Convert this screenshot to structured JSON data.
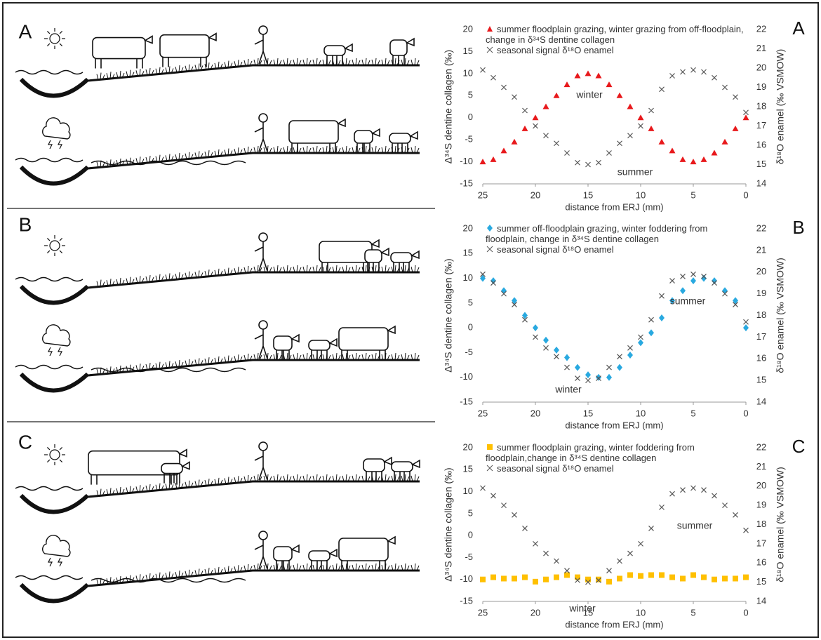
{
  "chart_data": [
    {
      "type": "scatter",
      "panel": "A",
      "xlabel": "distance from ERJ (mm)",
      "ylabel": "Δ³⁴S dentine collagen (‰)",
      "y2label": "δ¹⁸O enamel (‰ VSMOW)",
      "xlim": [
        25,
        0
      ],
      "xticks": [
        25,
        20,
        15,
        10,
        5,
        0
      ],
      "ylim": [
        -15,
        20
      ],
      "yticks": [
        -15,
        -10,
        -5,
        0,
        5,
        10,
        15,
        20
      ],
      "y2lim": [
        14,
        22
      ],
      "y2ticks": [
        14,
        15,
        16,
        17,
        18,
        19,
        20,
        21,
        22
      ],
      "annotations": [
        "winter",
        "summer"
      ],
      "x": [
        25,
        24,
        23,
        22,
        21,
        20,
        19,
        18,
        17,
        16,
        15,
        14,
        13,
        12,
        11,
        10,
        9,
        8,
        7,
        6,
        5,
        4,
        3,
        2,
        1,
        0
      ],
      "series": [
        {
          "name": "summer floodplain grazing, winter grazing from off-floodplain, change in δ³⁴S dentine collagen",
          "color": "#e8191c",
          "marker": "triangle",
          "values": [
            -10,
            -9.5,
            -7.5,
            -5.5,
            -2.5,
            0,
            2.5,
            5,
            7.5,
            9.5,
            10,
            9.5,
            7.5,
            5,
            2.5,
            0,
            -2.5,
            -5.5,
            -7.5,
            -9.5,
            -10,
            -9.5,
            -8,
            -5.5,
            -2.5,
            0
          ]
        },
        {
          "name": "seasonal signal δ¹⁸O enamel",
          "color": "#555555",
          "marker": "x",
          "axis": "y2",
          "values": [
            19.9,
            19.5,
            19.0,
            18.5,
            17.8,
            17.0,
            16.5,
            16.1,
            15.6,
            15.1,
            15.0,
            15.1,
            15.6,
            16.1,
            16.5,
            17.0,
            17.8,
            18.9,
            19.6,
            19.8,
            19.9,
            19.8,
            19.5,
            19.0,
            18.5,
            17.7
          ]
        }
      ]
    },
    {
      "type": "scatter",
      "panel": "B",
      "xlabel": "distance from ERJ (mm)",
      "ylabel": "Δ³⁴S dentine collagen (‰)",
      "y2label": "δ¹⁸O enamel (‰ VSMOW)",
      "xlim": [
        25,
        0
      ],
      "xticks": [
        25,
        20,
        15,
        10,
        5,
        0
      ],
      "ylim": [
        -15,
        20
      ],
      "yticks": [
        -15,
        -10,
        -5,
        0,
        5,
        10,
        15,
        20
      ],
      "y2lim": [
        14,
        22
      ],
      "y2ticks": [
        14,
        15,
        16,
        17,
        18,
        19,
        20,
        21,
        22
      ],
      "annotations": [
        "summer",
        "winter"
      ],
      "x": [
        25,
        24,
        23,
        22,
        21,
        20,
        19,
        18,
        17,
        16,
        15,
        14,
        13,
        12,
        11,
        10,
        9,
        8,
        7,
        6,
        5,
        4,
        3,
        2,
        1,
        0
      ],
      "series": [
        {
          "name": "summer off-floodplain grazing, winter foddering from floodplain, change in δ³⁴S dentine collagen",
          "color": "#29a9e0",
          "marker": "diamond",
          "values": [
            10,
            9.5,
            7.5,
            5.5,
            2.5,
            0,
            -2.5,
            -4.5,
            -6,
            -8,
            -9.5,
            -10,
            -10,
            -8,
            -5.5,
            -3,
            -1,
            2,
            5.5,
            7.5,
            9.5,
            10,
            9.5,
            7.5,
            5.5,
            0
          ]
        },
        {
          "name": "seasonal signal δ¹⁸O enamel",
          "color": "#555555",
          "marker": "x",
          "axis": "y2",
          "values": [
            19.9,
            19.5,
            19.0,
            18.5,
            17.8,
            17.0,
            16.5,
            16.1,
            15.6,
            15.1,
            15.0,
            15.1,
            15.6,
            16.1,
            16.5,
            17.0,
            17.8,
            18.9,
            19.6,
            19.8,
            19.9,
            19.8,
            19.5,
            19.0,
            18.5,
            17.7
          ]
        }
      ]
    },
    {
      "type": "scatter",
      "panel": "C",
      "xlabel": "distance from ERJ (mm)",
      "ylabel": "Δ³⁴S dentine collagen (‰)",
      "y2label": "δ¹⁸O enamel (‰ VSMOW)",
      "xlim": [
        25,
        0
      ],
      "xticks": [
        25,
        20,
        15,
        10,
        5,
        0
      ],
      "ylim": [
        -15,
        20
      ],
      "yticks": [
        -15,
        -10,
        -5,
        0,
        5,
        10,
        15,
        20
      ],
      "y2lim": [
        14,
        22
      ],
      "y2ticks": [
        14,
        15,
        16,
        17,
        18,
        19,
        20,
        21,
        22
      ],
      "annotations": [
        "summer",
        "winter"
      ],
      "x": [
        25,
        24,
        23,
        22,
        21,
        20,
        19,
        18,
        17,
        16,
        15,
        14,
        13,
        12,
        11,
        10,
        9,
        8,
        7,
        6,
        5,
        4,
        3,
        2,
        1,
        0
      ],
      "series": [
        {
          "name": "summer floodplain grazing, winter foddering from floodplain,change in δ³⁴S dentine collagen",
          "color": "#ffc000",
          "marker": "square",
          "values": [
            -10,
            -9.5,
            -9.8,
            -9.8,
            -9.5,
            -10.5,
            -10,
            -9.5,
            -9,
            -9.5,
            -10,
            -10,
            -10.5,
            -9.8,
            -9,
            -9.2,
            -9,
            -9,
            -9.5,
            -9.8,
            -9,
            -9.5,
            -10,
            -9.8,
            -9.8,
            -9.5
          ]
        },
        {
          "name": "seasonal signal δ¹⁸O enamel",
          "color": "#555555",
          "marker": "x",
          "axis": "y2",
          "values": [
            19.9,
            19.5,
            19.0,
            18.5,
            17.8,
            17.0,
            16.5,
            16.1,
            15.6,
            15.1,
            15.0,
            15.1,
            15.6,
            16.1,
            16.5,
            17.0,
            17.8,
            18.9,
            19.6,
            19.8,
            19.9,
            19.8,
            19.5,
            19.0,
            18.5,
            17.7
          ]
        }
      ]
    }
  ]
}
